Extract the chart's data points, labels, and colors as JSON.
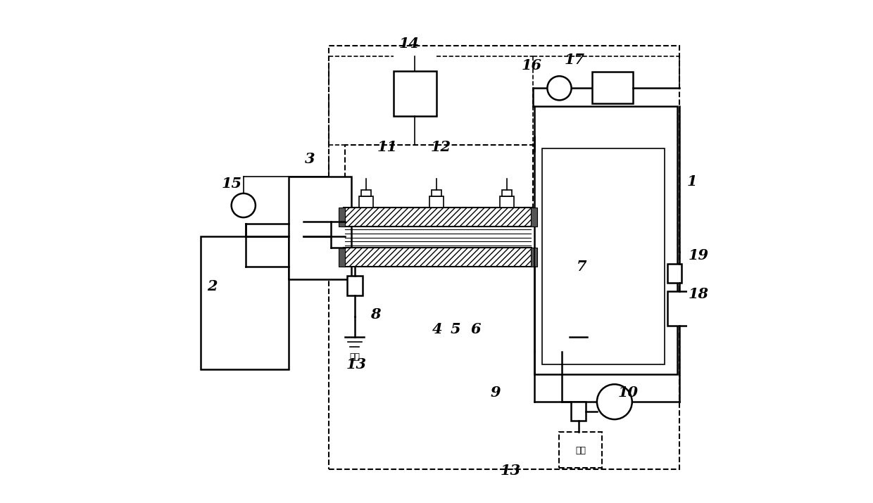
{
  "bg_color": "#ffffff",
  "line_color": "#000000",
  "figsize": [
    12.4,
    7.15
  ],
  "dpi": 100
}
